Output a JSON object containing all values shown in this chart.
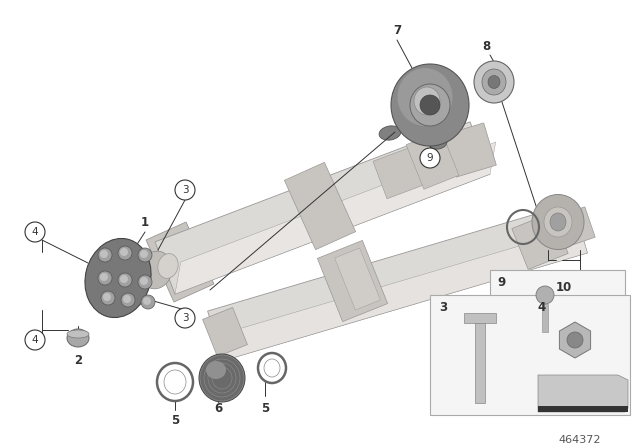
{
  "bg_color": "#ffffff",
  "fig_width": 6.4,
  "fig_height": 4.48,
  "dpi": 100,
  "part_number": "464372",
  "line_color": "#333333",
  "shaft_light": "#dcdad7",
  "shaft_mid": "#c8c5c0",
  "shaft_dark": "#a8a5a0",
  "shaft_edge": "#999896",
  "part_gray": "#8a8a8a",
  "part_light": "#b8b6b3",
  "box_bg": "#f5f5f5",
  "box_edge": "#aaaaaa"
}
